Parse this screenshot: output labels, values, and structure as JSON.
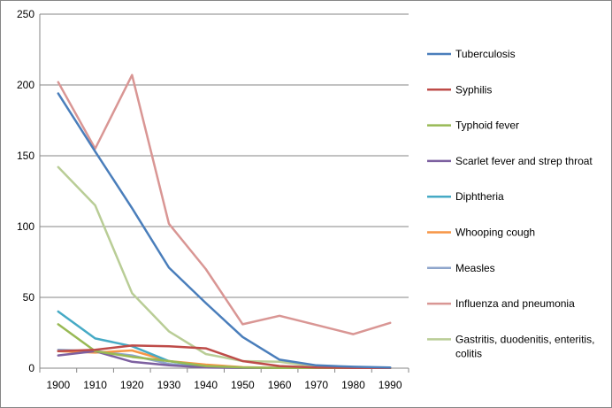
{
  "chart_data": {
    "type": "line",
    "title": "",
    "xlabel": "",
    "ylabel": "",
    "ylim": [
      0,
      250
    ],
    "yticks": [
      "0",
      "50",
      "100",
      "150",
      "200",
      "250"
    ],
    "categories": [
      "1900",
      "1910",
      "1920",
      "1930",
      "1940",
      "1950",
      "1960",
      "1970",
      "1980",
      "1990"
    ],
    "grid": "horizontal",
    "legend_position": "right",
    "series": [
      {
        "name": "Tuberculosis",
        "color": "#4A7EBB",
        "values": [
          194,
          153,
          113,
          71,
          46,
          22,
          6,
          2,
          1,
          0.5
        ]
      },
      {
        "name": "Syphilis",
        "color": "#BE4B48",
        "values": [
          12,
          13,
          16,
          15.5,
          14,
          5,
          1.5,
          0.5,
          0.2,
          0.1
        ]
      },
      {
        "name": "Typhoid fever",
        "color": "#98B954",
        "values": [
          31,
          12,
          8,
          5,
          1.5,
          0.5,
          0.2,
          0.1,
          0.1,
          0.1
        ]
      },
      {
        "name": "Scarlet fever and strep throat",
        "color": "#7D60A0",
        "values": [
          9,
          12,
          4.5,
          2,
          0.5,
          0.2,
          0.1,
          0.1,
          0.1,
          0.1
        ]
      },
      {
        "name": "Diphtheria",
        "color": "#46AAC5",
        "values": [
          40,
          21,
          15.5,
          5,
          1,
          0.3,
          0.1,
          0.1,
          0.1,
          0.1
        ]
      },
      {
        "name": "Whooping cough",
        "color": "#F79646",
        "values": [
          12,
          11,
          12.5,
          5,
          2.5,
          0.7,
          0.1,
          0.1,
          0.1,
          0.1
        ]
      },
      {
        "name": "Measles",
        "color": "#8EA5CB",
        "values": [
          13,
          12,
          9,
          3,
          0.5,
          0.3,
          0.2,
          0.1,
          0.1,
          0.1
        ]
      },
      {
        "name": "Influenza and pneumonia",
        "color": "#D99694",
        "values": [
          202,
          155,
          207,
          102,
          70,
          31,
          37,
          30.5,
          24,
          32
        ]
      },
      {
        "name": "Gastritis, duodenitis, enteritis, colitis",
        "color": "#B9CD96",
        "values": [
          142,
          115,
          53,
          26,
          10,
          5,
          4.5,
          1,
          0.5,
          0.3
        ]
      }
    ]
  },
  "legend_lines": [
    [
      "Tuberculosis"
    ],
    [
      "Syphilis"
    ],
    [
      "Typhoid fever"
    ],
    [
      "Scarlet fever and strep throat"
    ],
    [
      "Diphtheria"
    ],
    [
      "Whooping cough"
    ],
    [
      "Measles"
    ],
    [
      "Influenza and pneumonia"
    ],
    [
      "Gastritis, duodenitis, enteritis,",
      "colitis"
    ]
  ]
}
